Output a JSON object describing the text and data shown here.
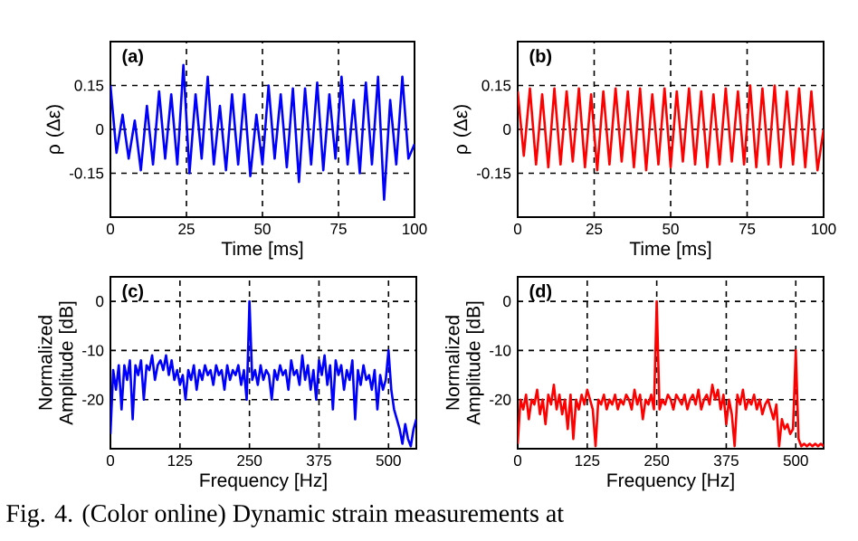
{
  "chart_data": [
    {
      "type": "line",
      "xlabel": "Time [ms]",
      "ylabel": "ρ (Δε)",
      "annotations": [
        "(a)"
      ],
      "grid": true,
      "xlim": [
        0,
        100
      ],
      "ylim": [
        -0.3,
        0.3
      ],
      "xticks": [
        0,
        25,
        50,
        75,
        100
      ],
      "yticks": [
        -0.15,
        0,
        0.15
      ],
      "x": [
        0,
        2,
        4,
        6,
        8,
        10,
        12,
        14,
        16,
        18,
        20,
        22,
        24,
        26,
        28,
        30,
        32,
        34,
        36,
        38,
        40,
        42,
        44,
        46,
        48,
        50,
        52,
        54,
        56,
        58,
        60,
        62,
        64,
        66,
        68,
        70,
        72,
        74,
        76,
        78,
        80,
        82,
        84,
        86,
        88,
        90,
        92,
        94,
        96,
        98,
        100
      ],
      "series": [
        {
          "color": "#0000ff",
          "values": [
            0.15,
            -0.08,
            0.05,
            -0.1,
            0.03,
            -0.14,
            0.08,
            -0.12,
            0.13,
            -0.1,
            0.12,
            -0.12,
            0.22,
            -0.15,
            0.12,
            -0.1,
            0.18,
            -0.12,
            0.08,
            -0.14,
            0.12,
            -0.12,
            0.12,
            -0.16,
            0.05,
            -0.12,
            0.15,
            -0.1,
            0.12,
            -0.13,
            0.14,
            -0.18,
            0.14,
            -0.12,
            0.16,
            -0.14,
            0.12,
            -0.1,
            0.18,
            -0.12,
            0.1,
            -0.15,
            0.16,
            -0.12,
            0.18,
            -0.24,
            0.1,
            -0.12,
            0.18,
            -0.1,
            -0.05
          ]
        }
      ]
    },
    {
      "type": "line",
      "xlabel": "Time [ms]",
      "ylabel": "ρ (Δε)",
      "annotations": [
        "(b)"
      ],
      "grid": true,
      "xlim": [
        0,
        100
      ],
      "ylim": [
        -0.3,
        0.3
      ],
      "xticks": [
        0,
        25,
        50,
        75,
        100
      ],
      "yticks": [
        -0.15,
        0,
        0.15
      ],
      "x": [
        0,
        2,
        4,
        6,
        8,
        10,
        12,
        14,
        16,
        18,
        20,
        22,
        24,
        26,
        28,
        30,
        32,
        34,
        36,
        38,
        40,
        42,
        44,
        46,
        48,
        50,
        52,
        54,
        56,
        58,
        60,
        62,
        64,
        66,
        68,
        70,
        72,
        74,
        76,
        78,
        80,
        82,
        84,
        86,
        88,
        90,
        92,
        94,
        96,
        98,
        100
      ],
      "series": [
        {
          "color": "#ff0000",
          "values": [
            0.13,
            -0.09,
            0.14,
            -0.12,
            0.12,
            -0.13,
            0.14,
            -0.12,
            0.13,
            -0.11,
            0.14,
            -0.13,
            0.12,
            -0.14,
            0.13,
            -0.12,
            0.14,
            -0.11,
            0.13,
            -0.13,
            0.14,
            -0.14,
            0.12,
            -0.12,
            0.14,
            -0.13,
            0.13,
            -0.11,
            0.14,
            -0.12,
            0.13,
            -0.13,
            0.12,
            -0.12,
            0.14,
            -0.11,
            0.13,
            -0.12,
            0.15,
            -0.13,
            0.14,
            -0.12,
            0.15,
            -0.13,
            0.13,
            -0.12,
            0.14,
            -0.13,
            0.13,
            -0.14,
            0.0
          ]
        }
      ]
    },
    {
      "type": "line",
      "xlabel": "Frequency [Hz]",
      "ylabel": "Normalized Amplitude [dB]",
      "annotations": [
        "(c)",
        "Fig. 4. (Color online) Dynamic strain measurements at"
      ],
      "grid": true,
      "xlim": [
        0,
        550
      ],
      "ylim": [
        -30,
        5
      ],
      "xticks": [
        0,
        125,
        250,
        375,
        500
      ],
      "yticks": [
        -20,
        -10,
        0
      ],
      "x": [
        0,
        5,
        10,
        15,
        20,
        25,
        30,
        35,
        40,
        45,
        50,
        55,
        60,
        65,
        70,
        75,
        80,
        85,
        90,
        95,
        100,
        105,
        110,
        115,
        120,
        125,
        130,
        135,
        140,
        145,
        150,
        155,
        160,
        165,
        170,
        175,
        180,
        185,
        190,
        195,
        200,
        205,
        210,
        215,
        220,
        225,
        230,
        235,
        240,
        245,
        250,
        255,
        260,
        265,
        270,
        275,
        280,
        285,
        290,
        295,
        300,
        305,
        310,
        315,
        320,
        325,
        330,
        335,
        340,
        345,
        350,
        355,
        360,
        365,
        370,
        375,
        380,
        385,
        390,
        395,
        400,
        405,
        410,
        415,
        420,
        425,
        430,
        435,
        440,
        445,
        450,
        455,
        460,
        465,
        470,
        475,
        480,
        485,
        490,
        495,
        500,
        505,
        510,
        515,
        520,
        525,
        530,
        535,
        540,
        545,
        550
      ],
      "series": [
        {
          "color": "#0000ff",
          "values": [
            -27,
            -14,
            -18,
            -13,
            -22,
            -13,
            -16,
            -12,
            -24,
            -13,
            -15,
            -12,
            -20,
            -13,
            -14,
            -11,
            -16,
            -13,
            -12,
            -14,
            -11,
            -15,
            -12,
            -16,
            -14,
            -17,
            -15,
            -20,
            -14,
            -16,
            -13,
            -18,
            -14,
            -16,
            -13,
            -15,
            -14,
            -17,
            -13,
            -15,
            -14,
            -18,
            -13,
            -16,
            -14,
            -15,
            -13,
            -17,
            -14,
            -20,
            0,
            -16,
            -14,
            -17,
            -13,
            -16,
            -14,
            -15,
            -20,
            -14,
            -16,
            -13,
            -15,
            -14,
            -18,
            -12,
            -15,
            -14,
            -17,
            -11,
            -16,
            -13,
            -18,
            -14,
            -20,
            -12,
            -15,
            -11,
            -17,
            -13,
            -22,
            -12,
            -15,
            -13,
            -18,
            -14,
            -16,
            -12,
            -24,
            -14,
            -17,
            -13,
            -16,
            -15,
            -18,
            -14,
            -22,
            -15,
            -18,
            -16,
            -10,
            -18,
            -22,
            -24,
            -26,
            -29,
            -25,
            -28,
            -29.5,
            -26,
            -24
          ]
        }
      ]
    },
    {
      "type": "line",
      "xlabel": "Frequency [Hz]",
      "ylabel": "Normalized Amplitude [dB]",
      "annotations": [
        "(d)"
      ],
      "grid": true,
      "xlim": [
        0,
        550
      ],
      "ylim": [
        -30,
        5
      ],
      "xticks": [
        0,
        125,
        250,
        375,
        500
      ],
      "yticks": [
        -20,
        -10,
        0
      ],
      "x": [
        0,
        5,
        10,
        15,
        20,
        25,
        30,
        35,
        40,
        45,
        50,
        55,
        60,
        65,
        70,
        75,
        80,
        85,
        90,
        95,
        100,
        105,
        110,
        115,
        120,
        125,
        130,
        135,
        140,
        145,
        150,
        155,
        160,
        165,
        170,
        175,
        180,
        185,
        190,
        195,
        200,
        205,
        210,
        215,
        220,
        225,
        230,
        235,
        240,
        245,
        250,
        255,
        260,
        265,
        270,
        275,
        280,
        285,
        290,
        295,
        300,
        305,
        310,
        315,
        320,
        325,
        330,
        335,
        340,
        345,
        350,
        355,
        360,
        365,
        370,
        375,
        380,
        385,
        390,
        395,
        400,
        405,
        410,
        415,
        420,
        425,
        430,
        435,
        440,
        445,
        450,
        455,
        460,
        465,
        470,
        475,
        480,
        485,
        490,
        495,
        500,
        505,
        510,
        515,
        520,
        525,
        530,
        535,
        540,
        545,
        550
      ],
      "series": [
        {
          "color": "#ff0000",
          "values": [
            -29,
            -20,
            -22,
            -19,
            -24,
            -20,
            -21,
            -18,
            -23,
            -20,
            -25,
            -19,
            -21,
            -17,
            -22,
            -19,
            -23,
            -20,
            -26,
            -19,
            -28,
            -20,
            -22,
            -19,
            -21,
            -18,
            -20,
            -22,
            -29.5,
            -20,
            -21,
            -19,
            -22,
            -20,
            -21,
            -19,
            -22,
            -20,
            -21,
            -19,
            -20,
            -22,
            -18,
            -21,
            -19,
            -24,
            -20,
            -21,
            -19,
            -22,
            0,
            -22,
            -20,
            -21,
            -19,
            -20,
            -22,
            -19,
            -20,
            -21,
            -19,
            -22,
            -20,
            -19,
            -21,
            -18,
            -22,
            -20,
            -19,
            -21,
            -17,
            -20,
            -18,
            -22,
            -19,
            -25,
            -20,
            -23,
            -29.5,
            -19,
            -21,
            -18,
            -22,
            -20,
            -21,
            -19,
            -22,
            -20,
            -23,
            -21,
            -20,
            -22,
            -24,
            -21,
            -29.5,
            -24,
            -26,
            -25,
            -27,
            -26,
            -10,
            -28,
            -29.5,
            -29,
            -29.5,
            -29,
            -29.5,
            -29,
            -29.5,
            -29,
            -29.5
          ]
        }
      ]
    }
  ]
}
